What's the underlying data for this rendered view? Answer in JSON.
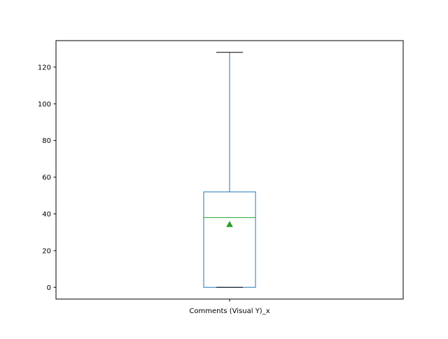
{
  "chart_data": {
    "type": "box",
    "title": "",
    "xlabel": "",
    "ylabel": "",
    "categories": [
      "Comments (Visual Y)_x"
    ],
    "ylim": [
      -6.4,
      134.4
    ],
    "yticks": [
      0,
      20,
      40,
      60,
      80,
      100,
      120
    ],
    "grid": false,
    "boxes": [
      {
        "label": "Comments (Visual Y)_x",
        "whisker_low": 0,
        "q1": 0,
        "median": 38,
        "q3": 52,
        "whisker_high": 128,
        "mean": 34.3
      }
    ],
    "colors": {
      "box": "#1f77b4",
      "median": "#2ca02c",
      "mean": "#2ca02c",
      "cap": "#000000",
      "axis": "#000000"
    }
  }
}
